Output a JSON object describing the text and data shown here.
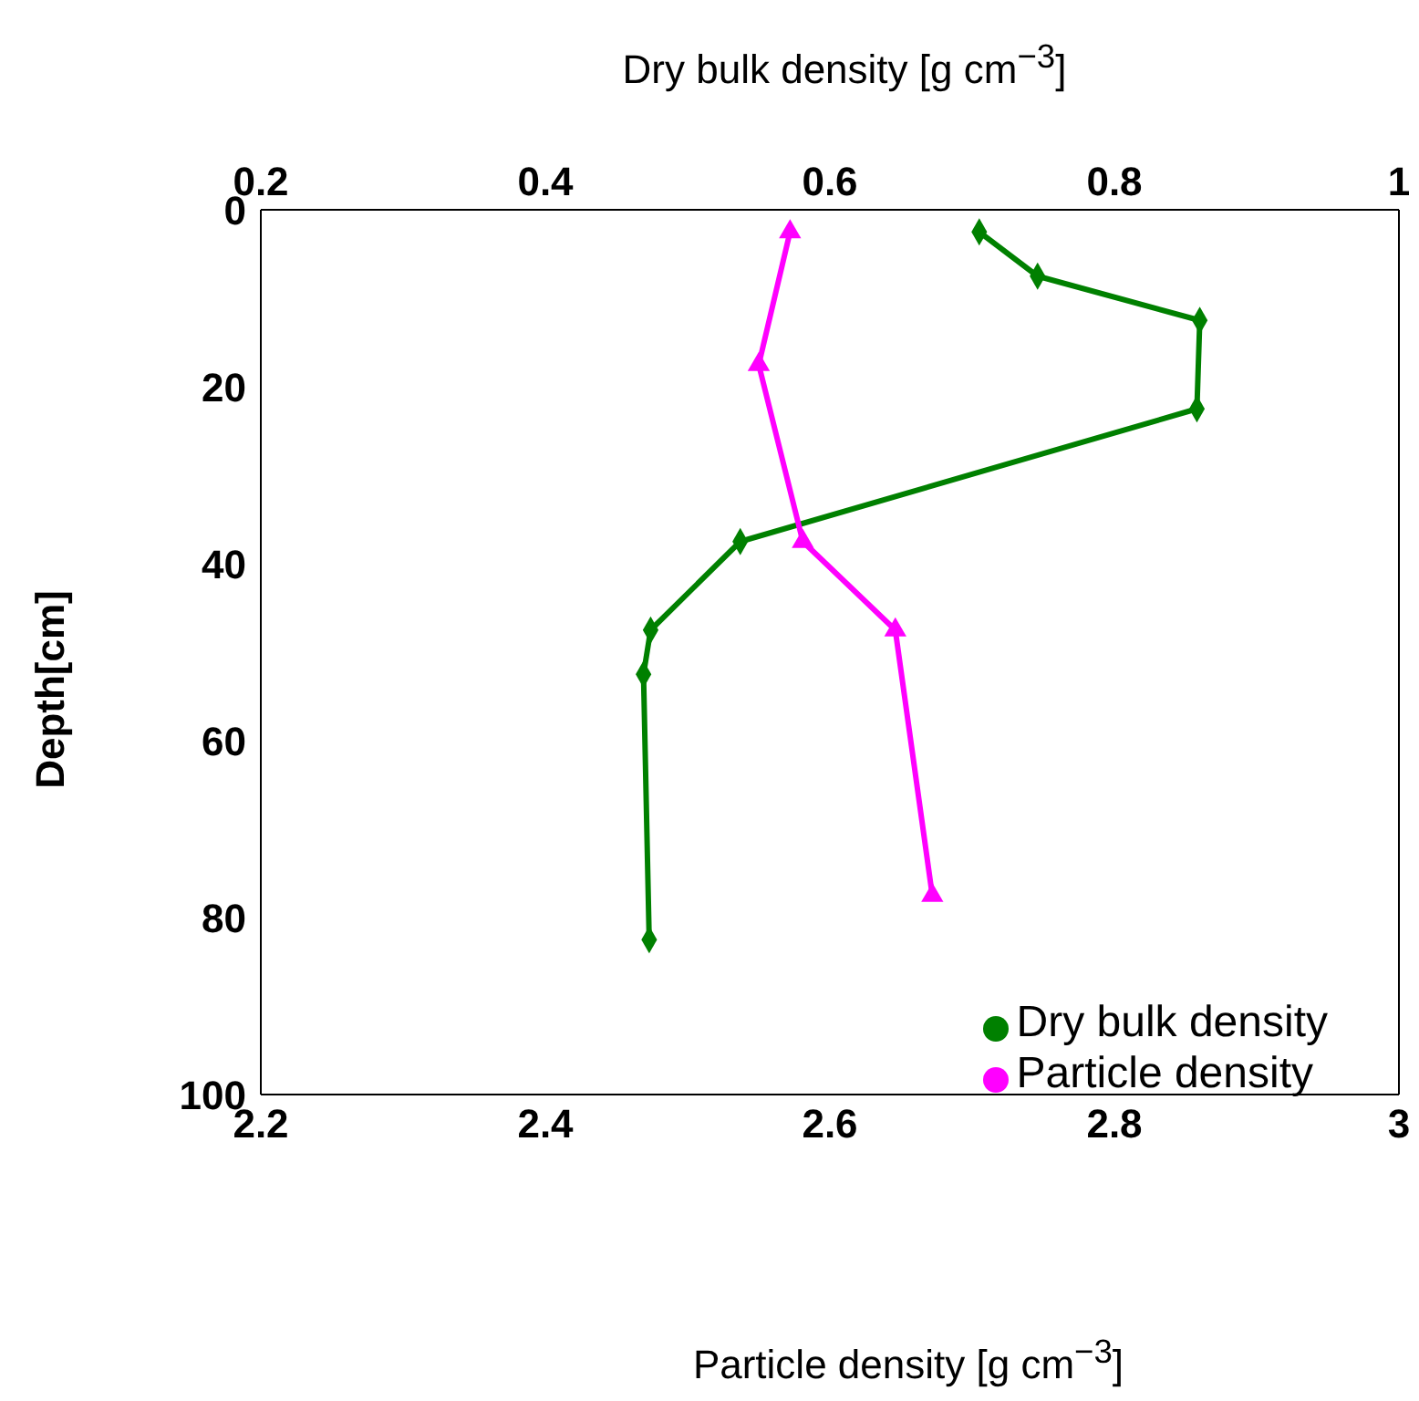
{
  "chart_data": {
    "type": "line",
    "xlabel": "Particle density [g cm$^{−3}$]",
    "x2label": "Dry bulk density [g cm$^{−3}$]",
    "ylabel": "Depth[cm]",
    "xlim": [
      2.2,
      3
    ],
    "xticks": [
      2.2,
      2.4,
      2.6,
      2.8,
      3
    ],
    "x2lim": [
      0.2,
      1
    ],
    "x2ticks": [
      0.2,
      0.4,
      0.6,
      0.8,
      1
    ],
    "ylim": [
      100,
      0
    ],
    "yticks": [
      0,
      20,
      40,
      60,
      80,
      100
    ],
    "legend": "bottom right",
    "series": [
      {
        "name": "Dry bulk density",
        "color": "#008000",
        "axis": "x2",
        "marker": "diamond",
        "x": [
          0.705,
          0.746,
          0.86,
          0.858,
          0.537,
          0.474,
          0.469,
          0.473
        ],
        "values": [
          2.5,
          7.5,
          12.5,
          22.5,
          37.5,
          47.5,
          52.5,
          82.5
        ]
      },
      {
        "name": "Particle density",
        "color": "#ff00ff",
        "marker": "triangle",
        "x": [
          2.572,
          2.55,
          2.581,
          2.646,
          2.672
        ],
        "values": [
          2.5,
          17.5,
          37.5,
          47.5,
          77.5
        ]
      }
    ]
  }
}
